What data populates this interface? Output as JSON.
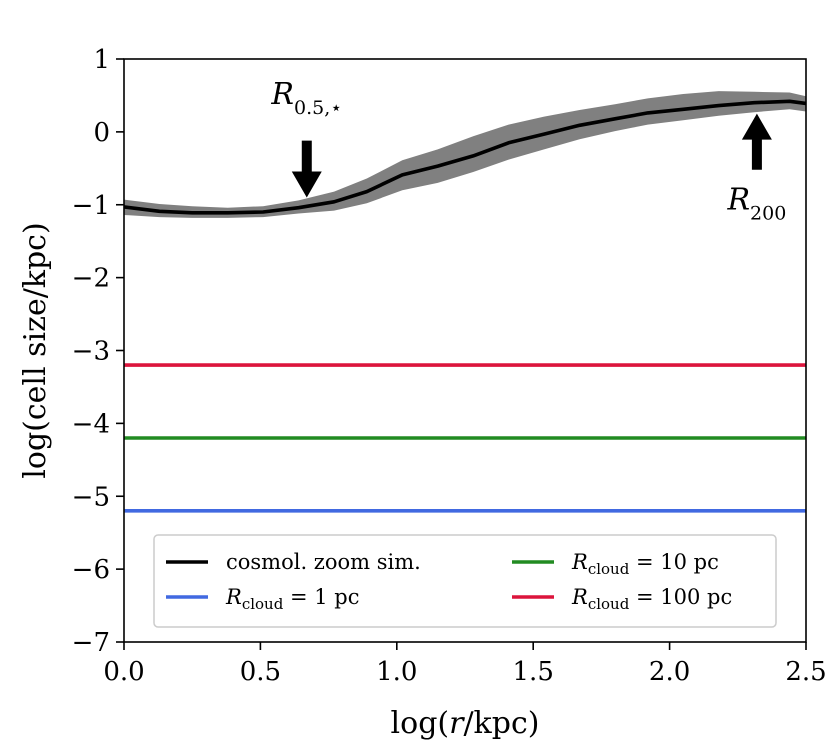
{
  "chart_data": {
    "type": "line",
    "xlabel": "log(r/kpc)",
    "ylabel": "log(cell size/kpc)",
    "xlim": [
      0.0,
      2.5
    ],
    "ylim": [
      -7,
      1
    ],
    "xticks": [
      "0.0",
      "0.5",
      "1.0",
      "1.5",
      "2.0",
      "2.5"
    ],
    "yticks": [
      "1",
      "0",
      "−1",
      "−2",
      "−3",
      "−4",
      "−5",
      "−6",
      "−7"
    ],
    "grid": false,
    "legend_position": "bottom-center",
    "series": [
      {
        "name": "cosmol. zoom sim.",
        "color": "#000000",
        "x": [
          0.0,
          0.13,
          0.25,
          0.38,
          0.51,
          0.64,
          0.77,
          0.89,
          1.02,
          1.15,
          1.28,
          1.41,
          1.54,
          1.67,
          1.8,
          1.92,
          2.05,
          2.18,
          2.31,
          2.44,
          2.5
        ],
        "y": [
          -1.03,
          -1.09,
          -1.11,
          -1.11,
          -1.1,
          -1.04,
          -0.96,
          -0.82,
          -0.59,
          -0.47,
          -0.33,
          -0.15,
          -0.03,
          0.09,
          0.18,
          0.26,
          0.31,
          0.36,
          0.4,
          0.42,
          0.39
        ],
        "band_lower": [
          -1.14,
          -1.17,
          -1.18,
          -1.18,
          -1.17,
          -1.12,
          -1.08,
          -0.98,
          -0.8,
          -0.7,
          -0.55,
          -0.38,
          -0.24,
          -0.1,
          0.01,
          0.1,
          0.16,
          0.22,
          0.27,
          0.31,
          0.28
        ],
        "band_upper": [
          -0.93,
          -0.99,
          -1.02,
          -1.04,
          -1.02,
          -0.94,
          -0.82,
          -0.64,
          -0.39,
          -0.24,
          -0.06,
          0.1,
          0.21,
          0.3,
          0.38,
          0.46,
          0.52,
          0.56,
          0.55,
          0.54,
          0.49
        ],
        "band_color": "#808080"
      },
      {
        "name_symbol": "R",
        "name_sub": "cloud",
        "name_rest": " = 1 pc",
        "color": "#4169e1",
        "x": [
          0.0,
          2.5
        ],
        "y": [
          -5.2,
          -5.2
        ]
      },
      {
        "name_symbol": "R",
        "name_sub": "cloud",
        "name_rest": " = 10 pc",
        "color": "#228b22",
        "x": [
          0.0,
          2.5
        ],
        "y": [
          -4.2,
          -4.2
        ]
      },
      {
        "name_symbol": "R",
        "name_sub": "cloud",
        "name_rest": " = 100 pc",
        "color": "#dc143c",
        "x": [
          0.0,
          2.5
        ],
        "y": [
          -3.2,
          -3.2
        ]
      }
    ],
    "annotations": [
      {
        "symbol": "R",
        "sub": "0.5,⋆",
        "x": 0.67,
        "direction": "down",
        "arrow_tip_y": -0.9,
        "arrow_tail_y": -0.12,
        "text_y": 0.55
      },
      {
        "symbol": "R",
        "sub": "200",
        "x": 2.32,
        "direction": "up",
        "arrow_tip_y": 0.25,
        "arrow_tail_y": -0.52,
        "text_y": -0.9
      }
    ]
  }
}
